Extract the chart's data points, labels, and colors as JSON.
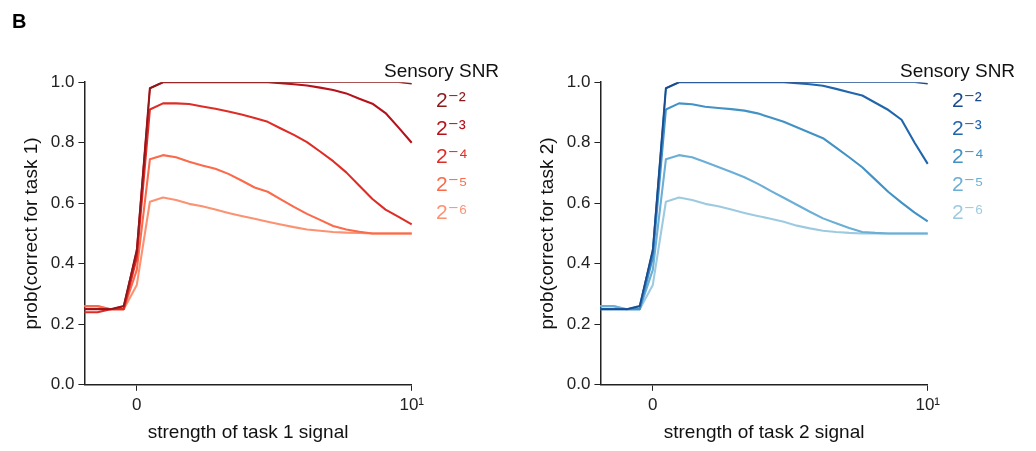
{
  "chart_data": [
    {
      "type": "line",
      "annotations": [
        "B"
      ],
      "xlabel": "strength of task 1 signal",
      "ylabel": "prob(correct for task 1)",
      "legend_title": "Sensory SNR",
      "legend": "right",
      "grid": false,
      "categories": [
        null,
        null,
        null,
        null,
        "0",
        null,
        null,
        null,
        null,
        null,
        null,
        null,
        null,
        null,
        null,
        null,
        null,
        null,
        null,
        null,
        null,
        null,
        null,
        null,
        null,
        "10¹"
      ],
      "ylim": [
        0,
        1
      ],
      "yticks": [
        {
          "value": 0,
          "label": "0.0"
        },
        {
          "value": 0.2,
          "label": "0.2"
        },
        {
          "value": 0.4,
          "label": "0.4"
        },
        {
          "value": 0.6,
          "label": "0.6"
        },
        {
          "value": 0.8,
          "label": "0.8"
        },
        {
          "value": 1,
          "label": "1.0"
        }
      ],
      "series": [
        {
          "name": "2⁻²",
          "color": "#8b1a1a",
          "values": [
            0.25,
            0.25,
            0.25,
            0.26,
            0.45,
            0.98,
            1.0,
            1.0,
            1.0,
            1.0,
            1.0,
            1.0,
            1.0,
            1.0,
            1.0,
            1.0,
            1.0,
            1.0,
            1.0,
            1.0,
            1.0,
            1.0,
            1.0,
            1.0,
            1.0,
            0.995
          ]
        },
        {
          "name": "2⁻³",
          "color": "#b5121b",
          "values": [
            0.25,
            0.25,
            0.25,
            0.26,
            0.44,
            0.98,
            1.0,
            1.0,
            1.0,
            1.0,
            1.0,
            1.0,
            1.0,
            1.0,
            1.0,
            0.997,
            0.993,
            0.989,
            0.982,
            0.974,
            0.963,
            0.945,
            0.929,
            0.898,
            0.85,
            0.8
          ]
        },
        {
          "name": "2⁻⁴",
          "color": "#de2d26",
          "values": [
            0.24,
            0.24,
            0.25,
            0.25,
            0.42,
            0.91,
            0.93,
            0.93,
            0.928,
            0.92,
            0.912,
            0.903,
            0.893,
            0.882,
            0.869,
            0.847,
            0.826,
            0.802,
            0.771,
            0.739,
            0.702,
            0.658,
            0.614,
            0.579,
            0.555,
            0.53
          ]
        },
        {
          "name": "2⁻⁵",
          "color": "#fb6a4a",
          "values": [
            0.26,
            0.26,
            0.25,
            0.25,
            0.38,
            0.745,
            0.759,
            0.752,
            0.737,
            0.725,
            0.714,
            0.697,
            0.675,
            0.652,
            0.638,
            0.613,
            0.588,
            0.565,
            0.545,
            0.525,
            0.513,
            0.506,
            0.5,
            0.5,
            0.5,
            0.5
          ]
        },
        {
          "name": "2⁻⁶",
          "color": "#fc9272",
          "values": [
            0.26,
            0.26,
            0.25,
            0.25,
            0.33,
            0.605,
            0.619,
            0.611,
            0.598,
            0.59,
            0.579,
            0.568,
            0.558,
            0.549,
            0.539,
            0.53,
            0.521,
            0.513,
            0.509,
            0.505,
            0.503,
            0.502,
            0.5,
            0.5,
            0.5,
            0.5
          ]
        }
      ]
    },
    {
      "type": "line",
      "xlabel": "strength of task 2 signal",
      "ylabel": "prob(correct for task 2)",
      "legend_title": "Sensory SNR",
      "legend": "right",
      "grid": false,
      "categories": [
        null,
        null,
        null,
        null,
        "0",
        null,
        null,
        null,
        null,
        null,
        null,
        null,
        null,
        null,
        null,
        null,
        null,
        null,
        null,
        null,
        null,
        null,
        null,
        null,
        null,
        "10¹"
      ],
      "ylim": [
        0,
        1
      ],
      "yticks": [
        {
          "value": 0,
          "label": "0.0"
        },
        {
          "value": 0.2,
          "label": "0.2"
        },
        {
          "value": 0.4,
          "label": "0.4"
        },
        {
          "value": 0.6,
          "label": "0.6"
        },
        {
          "value": 0.8,
          "label": "0.8"
        },
        {
          "value": 1,
          "label": "1.0"
        }
      ],
      "series": [
        {
          "name": "2⁻²",
          "color": "#1c4a8c",
          "values": [
            0.25,
            0.25,
            0.25,
            0.26,
            0.45,
            0.98,
            1.0,
            1.0,
            1.0,
            1.0,
            1.0,
            1.0,
            1.0,
            1.0,
            1.0,
            1.0,
            1.0,
            1.0,
            1.0,
            1.0,
            1.0,
            1.0,
            1.0,
            1.0,
            1.0,
            0.995
          ]
        },
        {
          "name": "2⁻³",
          "color": "#2166ac",
          "values": [
            0.25,
            0.25,
            0.25,
            0.26,
            0.44,
            0.98,
            1.0,
            1.0,
            1.0,
            1.0,
            1.0,
            1.0,
            1.0,
            1.0,
            1.0,
            0.997,
            0.993,
            0.988,
            0.978,
            0.967,
            0.956,
            0.932,
            0.908,
            0.876,
            0.8,
            0.73
          ]
        },
        {
          "name": "2⁻⁴",
          "color": "#4292c6",
          "values": [
            0.25,
            0.25,
            0.25,
            0.25,
            0.42,
            0.91,
            0.93,
            0.927,
            0.919,
            0.915,
            0.911,
            0.906,
            0.897,
            0.883,
            0.869,
            0.851,
            0.833,
            0.815,
            0.784,
            0.752,
            0.719,
            0.678,
            0.637,
            0.602,
            0.569,
            0.54
          ]
        },
        {
          "name": "2⁻⁵",
          "color": "#6baed6",
          "values": [
            0.26,
            0.26,
            0.25,
            0.25,
            0.38,
            0.745,
            0.759,
            0.752,
            0.736,
            0.72,
            0.703,
            0.686,
            0.665,
            0.641,
            0.618,
            0.595,
            0.572,
            0.55,
            0.534,
            0.518,
            0.505,
            0.502,
            0.5,
            0.5,
            0.5,
            0.5
          ]
        },
        {
          "name": "2⁻⁶",
          "color": "#9ecae1",
          "values": [
            0.26,
            0.26,
            0.25,
            0.25,
            0.33,
            0.605,
            0.619,
            0.611,
            0.598,
            0.59,
            0.579,
            0.568,
            0.558,
            0.549,
            0.539,
            0.526,
            0.517,
            0.509,
            0.505,
            0.502,
            0.5,
            0.5,
            0.5,
            0.5,
            0.5,
            0.5
          ]
        }
      ]
    }
  ]
}
